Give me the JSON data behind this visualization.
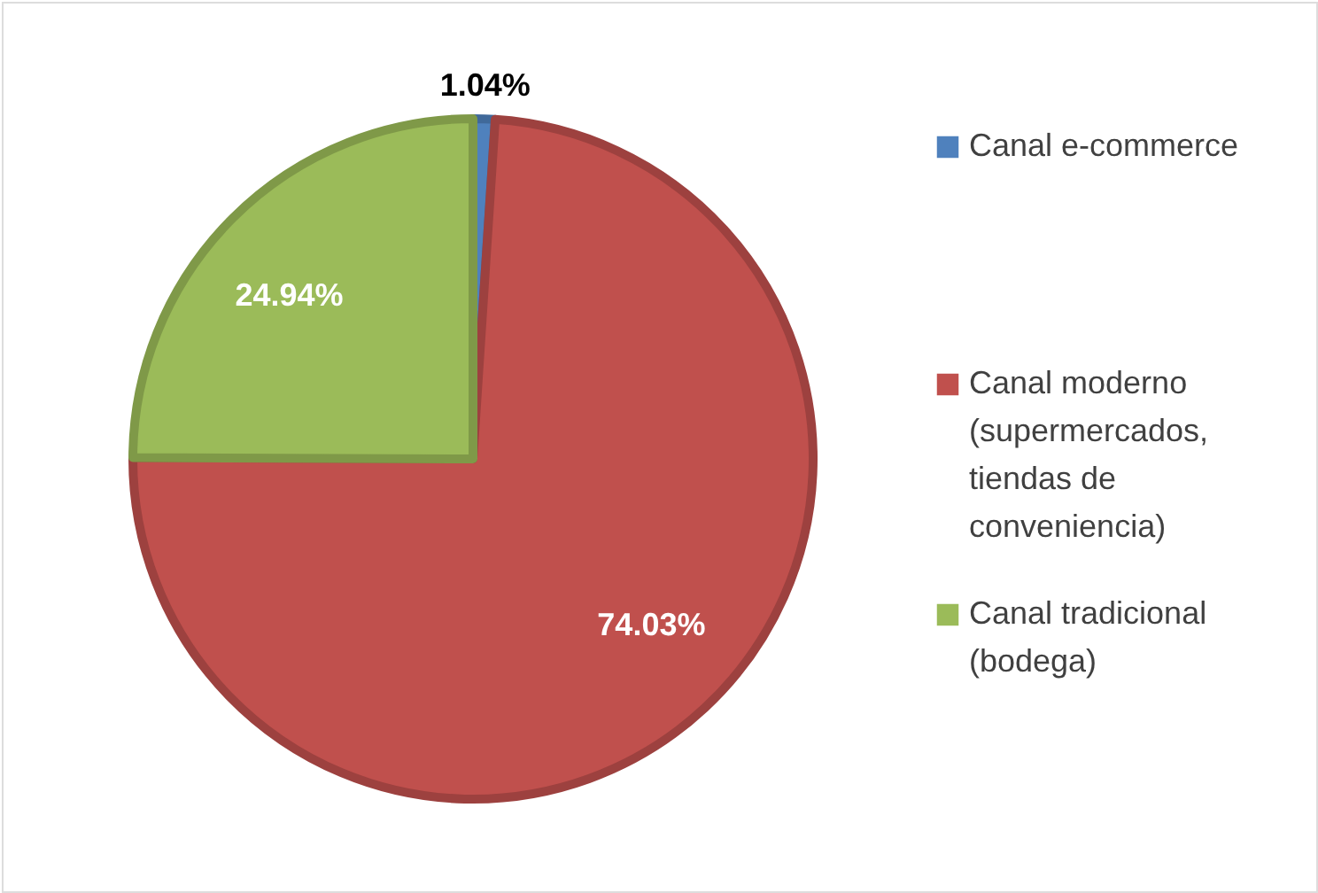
{
  "chart_data": {
    "type": "pie",
    "categories": [
      "Canal e-commerce",
      "Canal moderno (supermercados, tiendas de conveniencia)",
      "Canal tradicional (bodega)"
    ],
    "values": [
      1.04,
      74.03,
      24.94
    ],
    "colors": [
      "#4f81bd",
      "#c0504d",
      "#9bbb59"
    ],
    "value_labels": [
      "1.04%",
      "74.03%",
      "24.94%"
    ],
    "legend": "right"
  }
}
